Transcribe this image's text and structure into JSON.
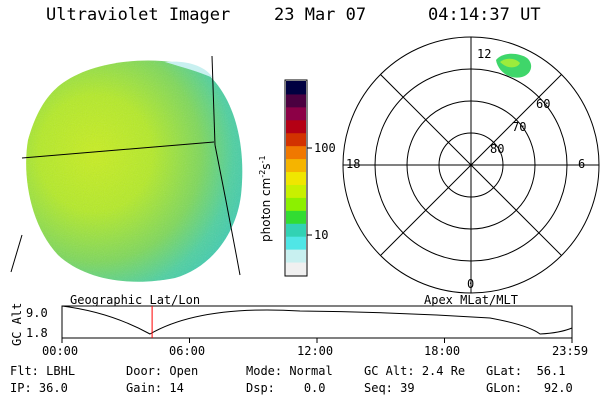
{
  "header": {
    "instrument": "Ultraviolet Imager",
    "date": "23 Mar 07",
    "time": "04:14:37 UT"
  },
  "colorbar": {
    "unit_label": "photon cm",
    "unit_exp1": "-2",
    "unit_s": "s",
    "unit_exp2": "-1",
    "tick_100": "100",
    "tick_10": "10",
    "colors": [
      "#000040",
      "#4b0040",
      "#8c0046",
      "#b40014",
      "#d23200",
      "#f07800",
      "#f5b400",
      "#f0e600",
      "#c8f000",
      "#8cf000",
      "#32dc32",
      "#32d2b4",
      "#50e6e6",
      "#c8f0f0",
      "#f0f0f0"
    ]
  },
  "polar_plot": {
    "mlt_top": "12",
    "mlt_left": "18",
    "mlt_right": "6",
    "mlt_bottom": "0",
    "lat_60": "60",
    "lat_70": "70",
    "lat_80": "80"
  },
  "labels": {
    "geographic": "Geographic Lat/Lon",
    "apex": "Apex MLat/MLT"
  },
  "altitude_plot": {
    "axis_label": "GC Alt",
    "y_max": "9.0",
    "y_min": "1.8",
    "x_ticks": [
      "00:00",
      "06:00",
      "12:00",
      "18:00",
      "23:59"
    ],
    "marker_time_hours": 4.24
  },
  "info": {
    "filter": {
      "label": "Flt:",
      "value": "LBHL"
    },
    "door": {
      "label": "Door:",
      "value": "Open"
    },
    "mode": {
      "label": "Mode:",
      "value": "Normal"
    },
    "gc_alt": {
      "label": "GC Alt:",
      "value": "2.4 Re"
    },
    "glat": {
      "label": "GLat:",
      "value": "56.1"
    },
    "ip": {
      "label": "IP:",
      "value": "36.0"
    },
    "gain": {
      "label": "Gain:",
      "value": "14"
    },
    "dsp": {
      "label": "Dsp:",
      "value": "0.0"
    },
    "seq": {
      "label": "Seq:",
      "value": "39"
    },
    "glon": {
      "label": "GLon:",
      "value": "92.0"
    }
  }
}
